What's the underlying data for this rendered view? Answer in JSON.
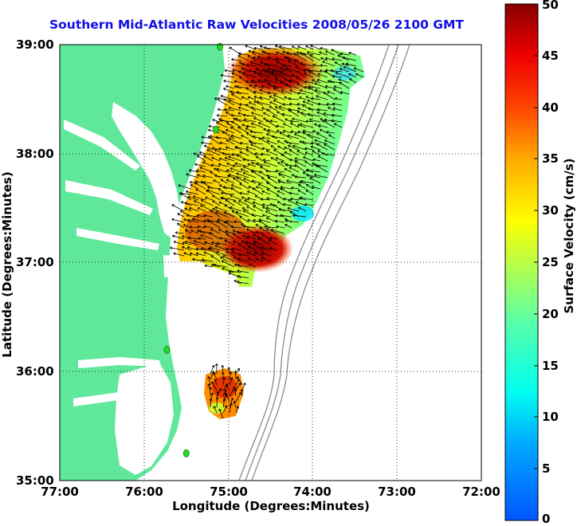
{
  "title": "Southern Mid-Atlantic Raw Velocities 2008/05/26 2100 GMT",
  "x_axis": {
    "label": "Longitude (Degrees:Minutes)",
    "ticks": [
      "77:00",
      "76:00",
      "75:00",
      "74:00",
      "73:00",
      "72:00"
    ]
  },
  "y_axis": {
    "label": "Latitude (Degrees:Minutes)",
    "ticks": [
      "39:00",
      "38:00",
      "37:00",
      "36:00",
      "35:00"
    ]
  },
  "colorbar": {
    "label": "Surface Velocity (cm/s)",
    "ticks": [
      "50",
      "45",
      "40",
      "35",
      "30",
      "25",
      "20",
      "15",
      "10",
      "5",
      "0"
    ],
    "min": 0,
    "max": 50,
    "colormap": "jet"
  },
  "colors": {
    "land": "#5fe89a",
    "title": "#1010e6",
    "station_marker": "#22dd22",
    "bathymetry_contour": "#8a8a8a"
  },
  "map": {
    "lon_range": [
      -77,
      -72
    ],
    "lat_range": [
      35,
      39
    ],
    "grid": "dotted",
    "stations": [
      {
        "lon": -75.1,
        "lat": 38.98
      },
      {
        "lon": -75.15,
        "lat": 38.22
      },
      {
        "lon": -75.73,
        "lat": 36.2
      },
      {
        "lon": -75.5,
        "lat": 35.25
      }
    ]
  }
}
